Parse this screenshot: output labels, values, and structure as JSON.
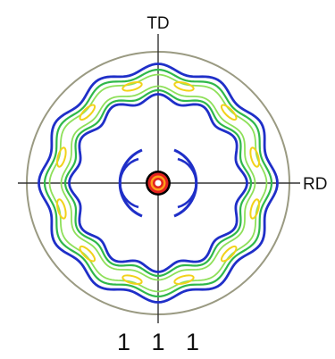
{
  "figure": {
    "axis_top_label": "TD",
    "axis_right_label": "RD",
    "caption": "1 1 1"
  },
  "colors": {
    "circle": "#9a9a82",
    "axis": "#333333",
    "contour_blue": "#1f2fc8",
    "contour_green": "#2fb84a",
    "contour_light_green": "#8ee05a",
    "contour_yellow": "#f2d21a",
    "center_red": "#e3221f",
    "center_orange": "#ff9f1a",
    "center_black": "#000000"
  }
}
